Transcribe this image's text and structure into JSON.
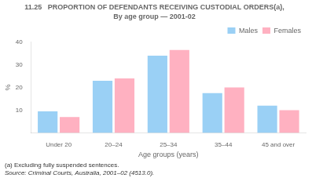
{
  "chart_data": {
    "type": "bar",
    "title": "11.25   PROPORTION OF DEFENDANTS RECEIVING CUSTODIAL ORDERS(a),",
    "subtitle": "By age group — 2001-02",
    "categories": [
      "Under 20",
      "20–24",
      "25–34",
      "35–44",
      "45 and over"
    ],
    "series": [
      {
        "name": "Males",
        "values": [
          9.5,
          23.0,
          34.0,
          17.5,
          12.0
        ]
      },
      {
        "name": "Females",
        "values": [
          7.0,
          24.0,
          36.5,
          20.0,
          10.0
        ]
      }
    ],
    "x_label": "Age groups (years)",
    "y_label": "%",
    "ylim": [
      0,
      40
    ],
    "yticks": [
      {
        "value": 0,
        "label": ""
      },
      10,
      20,
      30,
      40
    ],
    "grid": false,
    "legend": "upper right",
    "annotations": [
      "(a) Excluding fully suspended sentences.",
      "Source: Criminal Courts, Australia, 2001–02 (4513.0)."
    ]
  }
}
